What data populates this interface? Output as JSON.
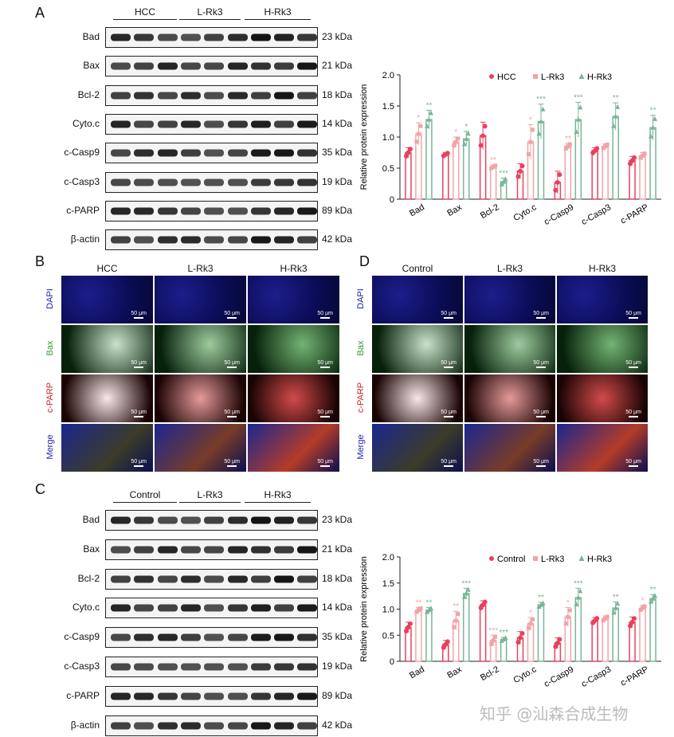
{
  "panels": {
    "A": "A",
    "B": "B",
    "C": "C",
    "D": "D"
  },
  "blotA": {
    "groups": [
      "HCC",
      "L-Rk3",
      "H-Rk3"
    ],
    "rows": [
      {
        "label": "Bad",
        "kda": "23 kDa"
      },
      {
        "label": "Bax",
        "kda": "21 kDa"
      },
      {
        "label": "Bcl-2",
        "kda": "18 kDa"
      },
      {
        "label": "Cyto.c",
        "kda": "14 kDa"
      },
      {
        "label": "c-Casp9",
        "kda": "35 kDa"
      },
      {
        "label": "c-Casp3",
        "kda": "19 kDa"
      },
      {
        "label": "c-PARP",
        "kda": "89 kDa"
      },
      {
        "label": "β-actin",
        "kda": "42 kDa"
      }
    ]
  },
  "blotC": {
    "groups": [
      "Control",
      "L-Rk3",
      "H-Rk3"
    ],
    "rows": [
      {
        "label": "Bad",
        "kda": "23 kDa"
      },
      {
        "label": "Bax",
        "kda": "21 kDa"
      },
      {
        "label": "Bcl-2",
        "kda": "18 kDa"
      },
      {
        "label": "Cyto.c",
        "kda": "14 kDa"
      },
      {
        "label": "c-Casp9",
        "kda": "35 kDa"
      },
      {
        "label": "c-Casp3",
        "kda": "19 kDa"
      },
      {
        "label": "c-PARP",
        "kda": "89 kDa"
      },
      {
        "label": "β-actin",
        "kda": "42 kDa"
      }
    ]
  },
  "ifB": {
    "columns": [
      "HCC",
      "L-Rk3",
      "H-Rk3"
    ],
    "stains": [
      "DAPI",
      "Bax",
      "c-PARP",
      "Merge"
    ],
    "scale": "50 μm"
  },
  "ifD": {
    "columns": [
      "Control",
      "L-Rk3",
      "H-Rk3"
    ],
    "stains": [
      "DAPI",
      "Bax",
      "c-PARP",
      "Merge"
    ],
    "scale": "50 μm"
  },
  "colors": {
    "g1": "#e8415f",
    "g2": "#f3a3a6",
    "g3": "#79b597",
    "dapi": "#1a1fb0",
    "green": "#2f9a2f",
    "red": "#d42020"
  },
  "chart_data": [
    {
      "type": "bar",
      "ylabel": "Relative protein expression",
      "ylim": [
        0,
        2.0
      ],
      "yticks": [
        "0",
        "0.5",
        "1.0",
        "1.5",
        "2.0"
      ],
      "categories": [
        "Bad",
        "Bax",
        "Bcl-2",
        "Cyto.c",
        "c-Casp9",
        "c-Casp3",
        "c-PARP"
      ],
      "legend_position": "top-right",
      "series": [
        {
          "name": "HCC",
          "values": [
            0.75,
            0.72,
            1.02,
            0.45,
            0.27,
            0.78,
            0.62
          ],
          "errors": [
            0.08,
            0.03,
            0.22,
            0.12,
            0.18,
            0.05,
            0.07
          ],
          "sig": [
            "",
            "",
            "",
            "",
            "",
            "",
            ""
          ]
        },
        {
          "name": "L-Rk3",
          "values": [
            1.05,
            0.92,
            0.52,
            0.92,
            0.85,
            0.85,
            0.7
          ],
          "errors": [
            0.18,
            0.08,
            0.03,
            0.28,
            0.05,
            0.04,
            0.05
          ],
          "sig": [
            "*",
            "*",
            "**",
            "*",
            "**",
            "",
            ""
          ]
        },
        {
          "name": "H-Rk3",
          "values": [
            1.28,
            0.97,
            0.28,
            1.25,
            1.28,
            1.33,
            1.15
          ],
          "errors": [
            0.15,
            0.12,
            0.06,
            0.28,
            0.28,
            0.22,
            0.2
          ],
          "sig": [
            "**",
            "*",
            "***",
            "***",
            "***",
            "**",
            "**"
          ]
        }
      ]
    },
    {
      "type": "bar",
      "ylabel": "Relative protein expression",
      "ylim": [
        0,
        2.0
      ],
      "yticks": [
        "0",
        "0.5",
        "1.0",
        "1.5",
        "2.0"
      ],
      "categories": [
        "Bad",
        "Bax",
        "Bcl-2",
        "Cyto.c",
        "c-Casp9",
        "c-Casp3",
        "c-PARP"
      ],
      "legend_position": "top-right",
      "series": [
        {
          "name": "Control",
          "values": [
            0.65,
            0.32,
            1.08,
            0.45,
            0.35,
            0.78,
            0.75
          ],
          "errors": [
            0.1,
            0.08,
            0.08,
            0.12,
            0.1,
            0.06,
            0.1
          ],
          "sig": [
            "",
            "",
            "",
            "",
            "",
            "",
            ""
          ]
        },
        {
          "name": "L-Rk3",
          "values": [
            0.98,
            0.78,
            0.4,
            0.72,
            0.85,
            0.82,
            1.02
          ],
          "errors": [
            0.05,
            0.18,
            0.1,
            0.12,
            0.18,
            0.05,
            0.05
          ],
          "sig": [
            "**",
            "**",
            "***",
            "*",
            "*",
            "",
            "*"
          ]
        },
        {
          "name": "H-Rk3",
          "values": [
            0.98,
            1.3,
            0.42,
            1.08,
            1.22,
            1.02,
            1.2
          ],
          "errors": [
            0.05,
            0.1,
            0.04,
            0.05,
            0.18,
            0.12,
            0.08
          ],
          "sig": [
            "**",
            "***",
            "***",
            "**",
            "***",
            "**",
            "**"
          ]
        }
      ]
    }
  ],
  "watermark": "知乎 @汕森合成生物"
}
